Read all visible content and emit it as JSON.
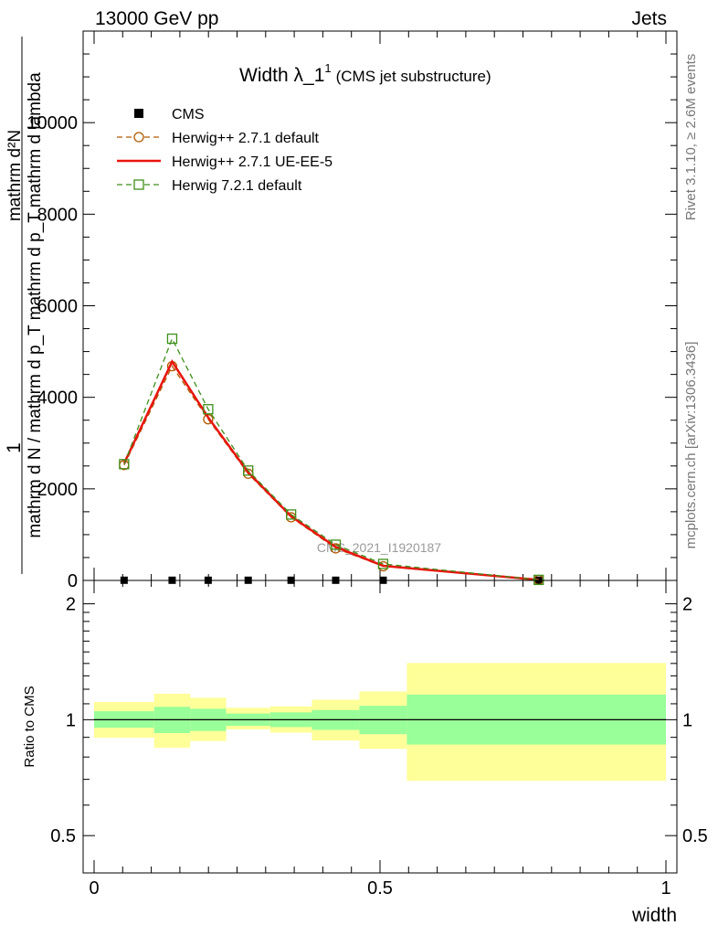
{
  "header": {
    "left": "13000 GeV pp",
    "right": "Jets"
  },
  "side_labels": {
    "rivet": "Rivet 3.1.10, ≥ 2.6M events",
    "mcplots": "mcplots.cern.ch [arXiv:1306.3436]"
  },
  "chart_data": [
    {
      "type": "line",
      "title": "Width λ_1",
      "title_sup": "1",
      "subtitle": "(CMS jet substructure)",
      "ylabel_top": "1",
      "ylabel_num": "mathrm d²N",
      "ylabel_den": "mathrm d N / mathrm d p_T mathrm d p_T mathrm d lambda",
      "watermark": "CMS_2021_I1920187",
      "xlim": [
        0,
        1
      ],
      "ylim": [
        0,
        12000
      ],
      "yticks": [
        0,
        2000,
        4000,
        6000,
        8000,
        10000
      ],
      "ytick_labels": [
        "0",
        "2000",
        "4000",
        "6000",
        "8000",
        "10000"
      ],
      "log_y": false,
      "legend_position": "top-left",
      "x": [
        0.0525,
        0.1365,
        0.1995,
        0.2695,
        0.3445,
        0.4225,
        0.5055,
        0.7775
      ],
      "series": [
        {
          "name": "CMS",
          "color": "#000000",
          "marker": "square-filled",
          "values": [
            4,
            4,
            4,
            4,
            4,
            4,
            4,
            4
          ]
        },
        {
          "name": "Herwig++ 2.7.1 default",
          "color": "#b35900",
          "style": "dashed",
          "marker": "circle-open",
          "values": [
            2520,
            4680,
            3520,
            2330,
            1380,
            700,
            310,
            12
          ]
        },
        {
          "name": "Herwig++ 2.7.1 UE-EE-5",
          "color": "#e8150e",
          "style": "solid",
          "marker": "none",
          "values": [
            2560,
            4780,
            3560,
            2360,
            1400,
            730,
            320,
            12
          ]
        },
        {
          "name": "Herwig 7.2.1 default",
          "color": "#3f8f1a",
          "style": "dashed",
          "marker": "square-open",
          "values": [
            2540,
            5280,
            3740,
            2400,
            1440,
            780,
            360,
            12
          ]
        }
      ]
    },
    {
      "type": "area",
      "ylabel": "Ratio to CMS",
      "xlabel": "width",
      "xlim": [
        0,
        1
      ],
      "ylim": [
        0.4,
        2.3
      ],
      "log_y": true,
      "yticks": [
        0.5,
        1,
        2
      ],
      "ytick_labels": [
        "0.5",
        "1",
        "2"
      ],
      "xticks": [
        0,
        0.5,
        1
      ],
      "xtick_labels": [
        "0",
        "0.5",
        "1"
      ],
      "reference_line": 1,
      "bins": [
        {
          "x": [
            0.0,
            0.105
          ],
          "inner": [
            0.953,
            1.052
          ],
          "outer": [
            0.898,
            1.112
          ]
        },
        {
          "x": [
            0.105,
            0.168
          ],
          "inner": [
            0.923,
            1.08
          ],
          "outer": [
            0.846,
            1.168
          ]
        },
        {
          "x": [
            0.168,
            0.231
          ],
          "inner": [
            0.935,
            1.068
          ],
          "outer": [
            0.88,
            1.14
          ]
        },
        {
          "x": [
            0.231,
            0.308
          ],
          "inner": [
            0.964,
            1.038
          ],
          "outer": [
            0.944,
            1.074
          ]
        },
        {
          "x": [
            0.308,
            0.381
          ],
          "inner": [
            0.957,
            1.045
          ],
          "outer": [
            0.926,
            1.083
          ]
        },
        {
          "x": [
            0.381,
            0.464
          ],
          "inner": [
            0.941,
            1.06
          ],
          "outer": [
            0.883,
            1.127
          ]
        },
        {
          "x": [
            0.464,
            0.547
          ],
          "inner": [
            0.917,
            1.087
          ],
          "outer": [
            0.84,
            1.184
          ]
        },
        {
          "x": [
            0.547,
            1.0
          ],
          "inner": [
            0.862,
            1.162
          ],
          "outer": [
            0.694,
            1.404
          ]
        }
      ],
      "inner_color": "#99ff99",
      "outer_color": "#ffff99"
    }
  ]
}
